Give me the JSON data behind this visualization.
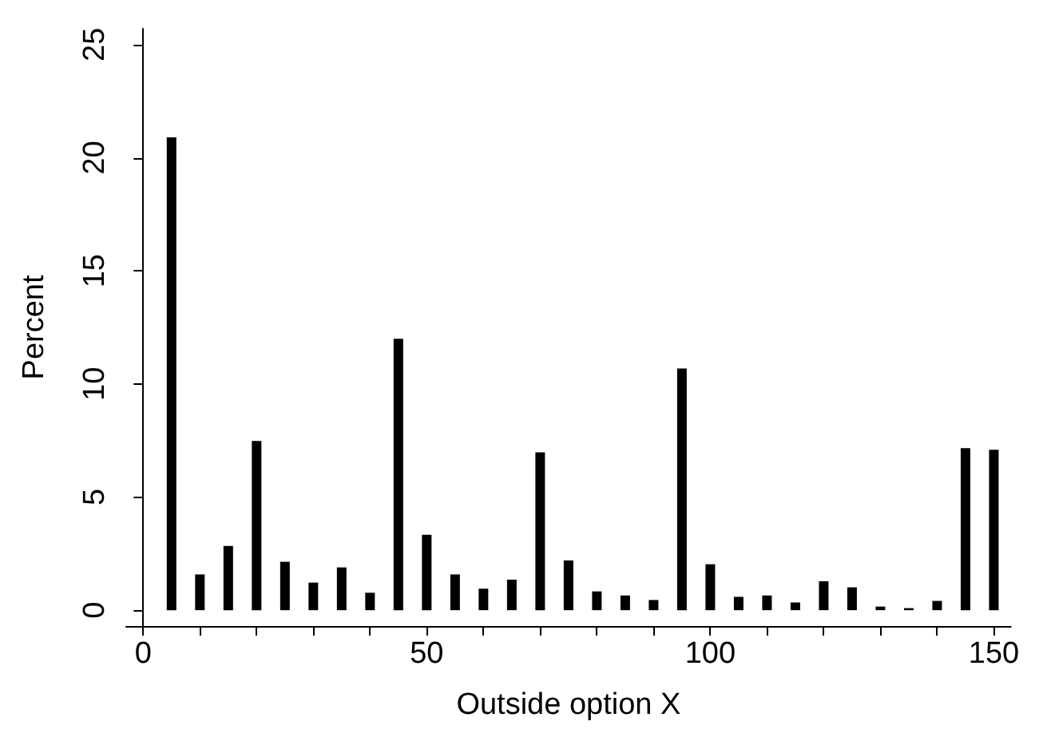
{
  "chart_data": {
    "type": "bar",
    "xlabel": "Outside option X",
    "ylabel": "Percent",
    "x": [
      5,
      10,
      15,
      20,
      25,
      30,
      35,
      40,
      45,
      50,
      55,
      60,
      65,
      70,
      75,
      80,
      85,
      90,
      95,
      100,
      105,
      110,
      115,
      120,
      125,
      130,
      135,
      140,
      145,
      150
    ],
    "values": [
      20.9,
      1.58,
      2.84,
      7.48,
      2.14,
      1.22,
      1.89,
      0.77,
      12.0,
      3.33,
      1.58,
      0.95,
      1.35,
      6.98,
      2.2,
      0.83,
      0.65,
      0.45,
      10.68,
      2.03,
      0.59,
      0.65,
      0.34,
      1.28,
      1.01,
      0.16,
      0.09,
      0.41,
      7.16,
      7.09
    ],
    "color": "#000000",
    "xlim": [
      -3,
      153
    ],
    "xticks": [
      0,
      {
        "value": 10,
        "label": null
      },
      {
        "value": 20,
        "label": null
      },
      {
        "value": 30,
        "label": null
      },
      {
        "value": 40,
        "label": null
      },
      50,
      {
        "value": 60,
        "label": null
      },
      {
        "value": 70,
        "label": null
      },
      {
        "value": 80,
        "label": null
      },
      {
        "value": 90,
        "label": null
      },
      100,
      {
        "value": 110,
        "label": null
      },
      {
        "value": 120,
        "label": null
      },
      {
        "value": 130,
        "label": null
      },
      {
        "value": 140,
        "label": null
      },
      150
    ],
    "ylim": [
      -0.7,
      25.7
    ],
    "yticks": [
      0,
      5,
      10,
      15,
      20,
      25
    ],
    "grid": false
  }
}
